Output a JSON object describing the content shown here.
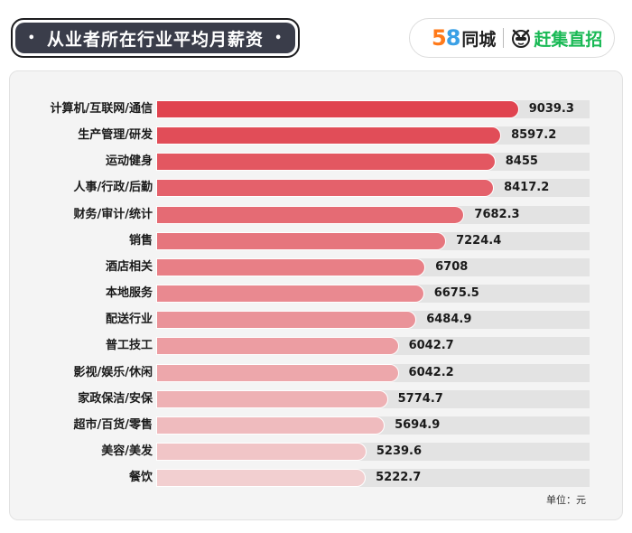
{
  "header": {
    "title": "从业者所在行业平均月薪资",
    "bullet_left": "•",
    "bullet_right": "•"
  },
  "logo": {
    "brand_58_digit1": "5",
    "brand_58_digit2": "8",
    "brand_tongcheng": "同城",
    "brand_ganji": "赶集直招"
  },
  "chart_data": {
    "type": "bar",
    "orientation": "horizontal",
    "title": "从业者所在行业平均月薪资",
    "categories": [
      "计算机/互联网/通信",
      "生产管理/研发",
      "运动健身",
      "人事/行政/后勤",
      "财务/审计/统计",
      "销售",
      "酒店相关",
      "本地服务",
      "配送行业",
      "普工技工",
      "影视/娱乐/休闲",
      "家政保洁/安保",
      "超市/百货/零售",
      "美容/美发",
      "餐饮"
    ],
    "values": [
      9039.3,
      8597.2,
      8455,
      8417.2,
      7682.3,
      7224.4,
      6708,
      6675.5,
      6484.9,
      6042.7,
      6042.2,
      5774.7,
      5694.9,
      5239.6,
      5222.7
    ],
    "value_labels": [
      "9039.3",
      "8597.2",
      "8455",
      "8417.2",
      "7682.3",
      "7224.4",
      "6708",
      "6675.5",
      "6484.9",
      "6042.7",
      "6042.2",
      "5774.7",
      "5694.9",
      "5239.6",
      "5222.7"
    ],
    "unit": "单位：元",
    "xlim": [
      0,
      10800
    ],
    "colors": {
      "dark": "#e0434f",
      "light": "#f2cfd0",
      "track": "#e3e3e3"
    }
  }
}
